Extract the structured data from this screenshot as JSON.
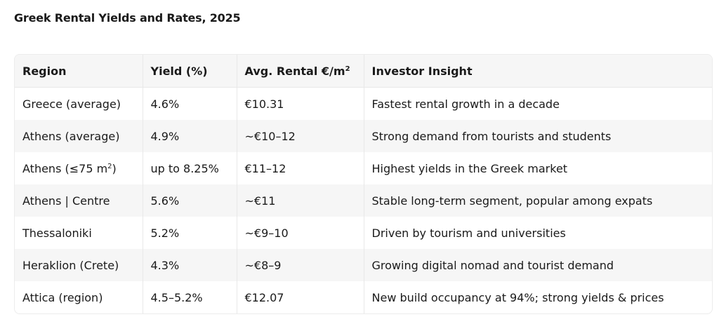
{
  "title": "Greek Rental Yields and Rates, 2025",
  "table": {
    "headers": {
      "region": "Region",
      "yield": "Yield (%)",
      "rental": "Avg. Rental €/m",
      "rental_sup": "2",
      "insight": "Investor Insight"
    },
    "rows": [
      {
        "region": "Greece (average)",
        "region_sup": "",
        "region_suffix": "",
        "yield": "4.6%",
        "rental": "€10.31",
        "insight": "Fastest rental growth in a decade"
      },
      {
        "region": "Athens (average)",
        "region_sup": "",
        "region_suffix": "",
        "yield": "4.9%",
        "rental": "~€10–12",
        "insight": "Strong demand from tourists and students"
      },
      {
        "region": "Athens (≤75 m",
        "region_sup": "2",
        "region_suffix": ")",
        "yield": "up to 8.25%",
        "rental": "€11–12",
        "insight": "Highest yields in the Greek market"
      },
      {
        "region": "Athens | Centre",
        "region_sup": "",
        "region_suffix": "",
        "yield": "5.6%",
        "rental": "~€11",
        "insight": "Stable long-term segment, popular among expats"
      },
      {
        "region": "Thessaloniki",
        "region_sup": "",
        "region_suffix": "",
        "yield": "5.2%",
        "rental": "~€9–10",
        "insight": "Driven by tourism and universities"
      },
      {
        "region": "Heraklion (Crete)",
        "region_sup": "",
        "region_suffix": "",
        "yield": "4.3%",
        "rental": "~€8–9",
        "insight": "Growing digital nomad and tourist demand"
      },
      {
        "region": "Attica (region)",
        "region_sup": "",
        "region_suffix": "",
        "yield": "4.5–5.2%",
        "rental": "€12.07",
        "insight": "New build occupancy at 94%; strong yields & prices"
      }
    ]
  }
}
